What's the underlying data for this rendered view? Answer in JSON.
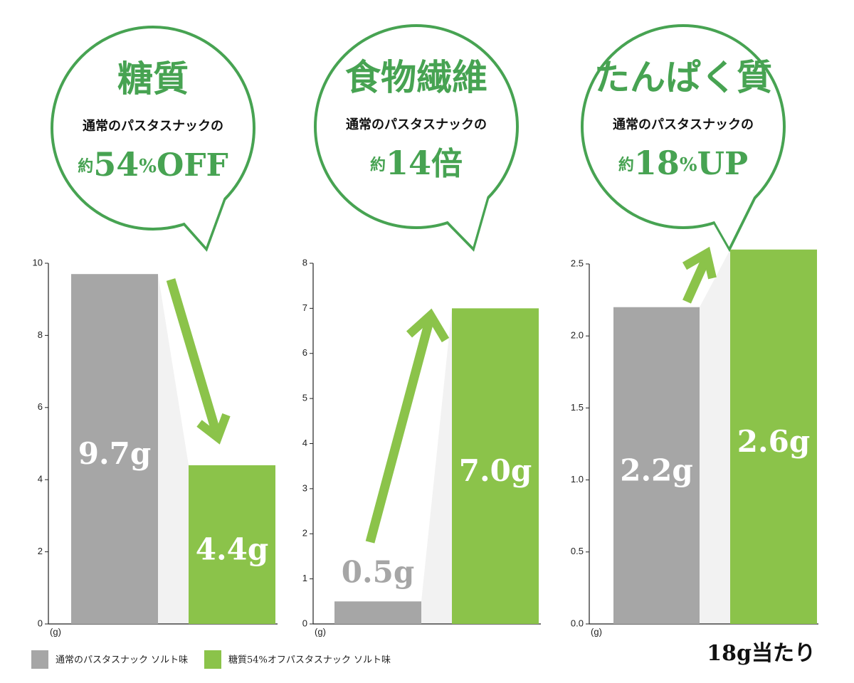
{
  "chart_data": [
    {
      "type": "bar",
      "callout": {
        "heading": "糖質",
        "lead": "通常のパスタスナックの",
        "prefix": "約",
        "figure": "54",
        "unit": "%",
        "suffix": "OFF"
      },
      "ylabel": "(g)",
      "ylim": [
        0,
        10
      ],
      "yticks": [
        0,
        2,
        4,
        6,
        8,
        10
      ],
      "series": [
        {
          "name": "通常のパスタスナック ソルト味",
          "color": "#a6a6a6",
          "values": [
            9.7
          ],
          "value_labels": [
            "9.7g"
          ]
        },
        {
          "name": "糖質54%オフパスタスナック ソルト味",
          "color": "#8bc34a",
          "values": [
            4.4
          ],
          "value_labels": [
            "4.4g"
          ]
        }
      ]
    },
    {
      "type": "bar",
      "callout": {
        "heading": "食物繊維",
        "lead": "通常のパスタスナックの",
        "prefix": "約",
        "figure": "14",
        "suffix": "倍"
      },
      "ylabel": "(g)",
      "ylim": [
        0,
        8
      ],
      "yticks": [
        0,
        1,
        2,
        3,
        4,
        5,
        6,
        7,
        8
      ],
      "series": [
        {
          "color": "#a6a6a6",
          "values": [
            0.5
          ],
          "value_labels": [
            "0.5g"
          ]
        },
        {
          "color": "#8bc34a",
          "values": [
            7
          ],
          "value_labels": [
            "7.0g"
          ]
        }
      ]
    },
    {
      "type": "bar",
      "callout": {
        "heading": "たんぱく質",
        "lead": "通常のパスタスナックの",
        "prefix": "約",
        "figure": "18",
        "unit": "%",
        "suffix": "UP"
      },
      "ylabel": "(g)",
      "ylim": [
        0,
        2.5
      ],
      "yticks": [
        {
          "value": 0,
          "label": "0.0"
        },
        0.5,
        {
          "value": 1,
          "label": "1.0"
        },
        1.5,
        {
          "value": 2,
          "label": "2.0"
        },
        2.5
      ],
      "series": [
        {
          "color": "#a6a6a6",
          "values": [
            2.2
          ],
          "value_labels": [
            "2.2g"
          ]
        },
        {
          "color": "#8bc34a",
          "values": [
            2.6
          ],
          "value_labels": [
            "2.6g"
          ]
        }
      ]
    }
  ],
  "note": "18g当たり"
}
